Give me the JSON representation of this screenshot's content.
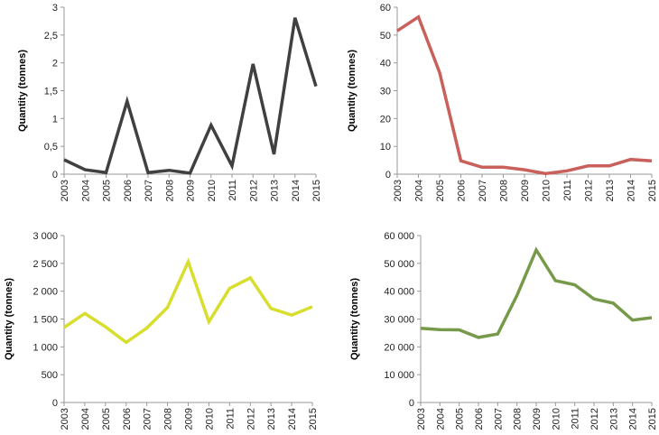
{
  "chart_data": [
    {
      "type": "line",
      "ylabel": "Quantity (tonnes)",
      "ylim": [
        0,
        3
      ],
      "yticks": [
        "0",
        "0,5",
        "1",
        "1,5",
        "2",
        "2,5",
        "3"
      ],
      "categories": [
        "2003",
        "2004",
        "2005",
        "2006",
        "2007",
        "2008",
        "2009",
        "2010",
        "2011",
        "2012",
        "2013",
        "2014",
        "2015"
      ],
      "values": [
        0.26,
        0.08,
        0.03,
        1.31,
        0.03,
        0.07,
        0.02,
        0.88,
        0.15,
        1.98,
        0.36,
        2.81,
        1.58
      ],
      "color": "#404040",
      "grid": false
    },
    {
      "type": "line",
      "ylabel": "Quantity (tonnes)",
      "ylim": [
        0,
        60
      ],
      "yticks": [
        "0",
        "10",
        "20",
        "30",
        "40",
        "50",
        "60"
      ],
      "categories": [
        "2003",
        "2004",
        "2005",
        "2006",
        "2007",
        "2008",
        "2009",
        "2010",
        "2011",
        "2012",
        "2013",
        "2014",
        "2015"
      ],
      "values": [
        51.5,
        56.5,
        36.5,
        4.8,
        2.5,
        2.5,
        1.6,
        0.2,
        1.2,
        3.0,
        3.0,
        5.3,
        4.8
      ],
      "color": "#c9605c",
      "grid": false
    },
    {
      "type": "line",
      "ylabel": "Quantity (tonnes)",
      "ylim": [
        0,
        3000
      ],
      "yticks": [
        "0",
        "500",
        "1 000",
        "1 500",
        "2 000",
        "2 500",
        "3 000"
      ],
      "categories": [
        "2003",
        "2004",
        "2005",
        "2006",
        "2007",
        "2008",
        "2009",
        "2010",
        "2011",
        "2012",
        "2013",
        "2014",
        "2015"
      ],
      "values": [
        1350,
        1600,
        1360,
        1080,
        1340,
        1710,
        2530,
        1450,
        2050,
        2240,
        1690,
        1570,
        1720
      ],
      "color": "#d8de2e",
      "grid": false
    },
    {
      "type": "line",
      "ylabel": "Quantity (tonnes)",
      "ylim": [
        0,
        60000
      ],
      "yticks": [
        "0",
        "10 000",
        "20 000",
        "30 000",
        "40 000",
        "50 000",
        "60 000"
      ],
      "categories": [
        "2003",
        "2004",
        "2005",
        "2006",
        "2007",
        "2008",
        "2009",
        "2010",
        "2011",
        "2012",
        "2013",
        "2014",
        "2015"
      ],
      "values": [
        26700,
        26200,
        26100,
        23400,
        24600,
        38500,
        54800,
        43800,
        42300,
        37200,
        35700,
        29600,
        30500
      ],
      "color": "#77994a",
      "grid": false
    }
  ]
}
